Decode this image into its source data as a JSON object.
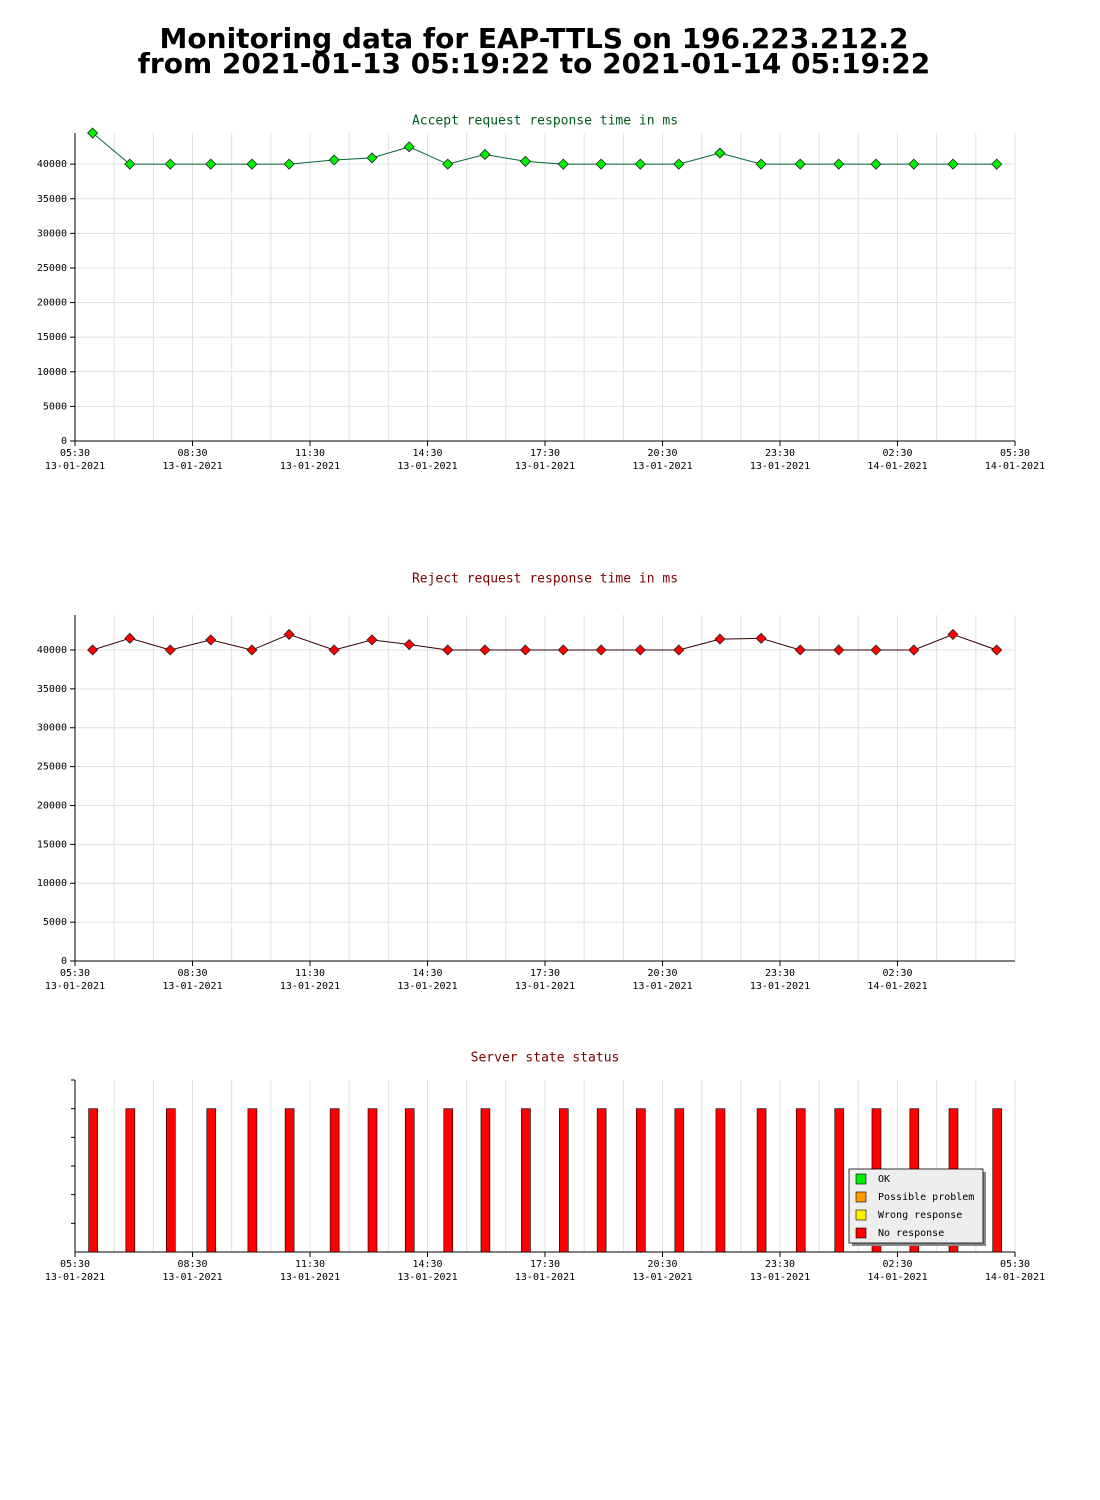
{
  "header": {
    "line1": "Monitoring data for EAP-TTLS on 196.223.212.2",
    "line2": "from 2021-01-13 05:19:22 to 2021-01-14 05:19:22"
  },
  "chart_data": [
    {
      "type": "line",
      "title": "Accept request response time in ms",
      "title_color": "#005a1e",
      "x": [
        "2021-01-13 05:57",
        "2021-01-13 06:54",
        "2021-01-13 07:56",
        "2021-01-13 08:58",
        "2021-01-13 10:01",
        "2021-01-13 10:58",
        "2021-01-13 12:07",
        "2021-01-13 13:05",
        "2021-01-13 14:02",
        "2021-01-13 15:01",
        "2021-01-13 15:58",
        "2021-01-13 17:00",
        "2021-01-13 17:58",
        "2021-01-13 18:56",
        "2021-01-13 19:56",
        "2021-01-13 20:55",
        "2021-01-13 21:58",
        "2021-01-13 23:01",
        "2021-01-14 00:01",
        "2021-01-14 01:00",
        "2021-01-14 01:57",
        "2021-01-14 02:55",
        "2021-01-14 03:55",
        "2021-01-14 05:02"
      ],
      "series": [
        {
          "color": "#00ee00",
          "line_color": "#006633",
          "values": [
            44500,
            40000,
            40000,
            40000,
            40000,
            40000,
            40600,
            40900,
            42500,
            40000,
            41400,
            40400,
            40000,
            40000,
            40000,
            40000,
            41600,
            40000,
            40000,
            40000,
            40000,
            40000,
            40000,
            40000
          ]
        }
      ],
      "xlim": [
        "2021-01-13 05:30",
        "2021-01-14 05:30"
      ],
      "xticks": [
        {
          "value": "2021-01-13 05:30",
          "label": "05:30",
          "date": "13-01-2021"
        },
        {
          "value": "2021-01-13 08:30",
          "label": "08:30",
          "date": "13-01-2021"
        },
        {
          "value": "2021-01-13 11:30",
          "label": "11:30",
          "date": "13-01-2021"
        },
        {
          "value": "2021-01-13 14:30",
          "label": "14:30",
          "date": "13-01-2021"
        },
        {
          "value": "2021-01-13 17:30",
          "label": "17:30",
          "date": "13-01-2021"
        },
        {
          "value": "2021-01-13 20:30",
          "label": "20:30",
          "date": "13-01-2021"
        },
        {
          "value": "2021-01-13 23:30",
          "label": "23:30",
          "date": "13-01-2021"
        },
        {
          "value": "2021-01-14 02:30",
          "label": "02:30",
          "date": "14-01-2021"
        },
        {
          "value": "2021-01-14 05:30",
          "label": "05:30",
          "date": "14-01-2021"
        }
      ],
      "ylim": [
        0,
        44500
      ],
      "yticks": [
        0,
        5000,
        10000,
        15000,
        20000,
        25000,
        30000,
        35000,
        40000
      ],
      "grid": true
    },
    {
      "type": "line",
      "title": "Reject request response time in ms",
      "title_color": "#7a0000",
      "x": [
        "2021-01-13 05:57",
        "2021-01-13 06:54",
        "2021-01-13 07:56",
        "2021-01-13 08:58",
        "2021-01-13 10:01",
        "2021-01-13 10:58",
        "2021-01-13 12:07",
        "2021-01-13 13:05",
        "2021-01-13 14:02",
        "2021-01-13 15:01",
        "2021-01-13 15:58",
        "2021-01-13 17:00",
        "2021-01-13 17:58",
        "2021-01-13 18:56",
        "2021-01-13 19:56",
        "2021-01-13 20:55",
        "2021-01-13 21:58",
        "2021-01-13 23:01",
        "2021-01-14 00:01",
        "2021-01-14 01:00",
        "2021-01-14 01:57",
        "2021-01-14 02:55",
        "2021-01-14 03:55",
        "2021-01-14 05:02"
      ],
      "series": [
        {
          "color": "#ff0000",
          "line_color": "#330000",
          "values": [
            40000,
            41500,
            40000,
            41300,
            40000,
            42000,
            40000,
            41300,
            40700,
            40000,
            40000,
            40000,
            40000,
            40000,
            40000,
            40000,
            41400,
            41500,
            40000,
            40000,
            40000,
            40000,
            42000,
            40000
          ]
        }
      ],
      "xlim": [
        "2021-01-13 05:30",
        "2021-01-14 05:30"
      ],
      "xticks": [
        {
          "value": "2021-01-13 05:30",
          "label": "05:30",
          "date": "13-01-2021"
        },
        {
          "value": "2021-01-13 08:30",
          "label": "08:30",
          "date": "13-01-2021"
        },
        {
          "value": "2021-01-13 11:30",
          "label": "11:30",
          "date": "13-01-2021"
        },
        {
          "value": "2021-01-13 14:30",
          "label": "14:30",
          "date": "13-01-2021"
        },
        {
          "value": "2021-01-13 17:30",
          "label": "17:30",
          "date": "13-01-2021"
        },
        {
          "value": "2021-01-13 20:30",
          "label": "20:30",
          "date": "13-01-2021"
        },
        {
          "value": "2021-01-13 23:30",
          "label": "23:30",
          "date": "13-01-2021"
        },
        {
          "value": "2021-01-14 02:30",
          "label": "02:30",
          "date": "14-01-2021"
        }
      ],
      "ylim": [
        0,
        44500
      ],
      "yticks": [
        0,
        5000,
        10000,
        15000,
        20000,
        25000,
        30000,
        35000,
        40000
      ],
      "grid": true
    },
    {
      "type": "status",
      "title": "Server state status",
      "title_color": "#7a0000",
      "x": [
        "2021-01-13 05:57",
        "2021-01-13 06:54",
        "2021-01-13 07:56",
        "2021-01-13 08:58",
        "2021-01-13 10:01",
        "2021-01-13 10:58",
        "2021-01-13 12:07",
        "2021-01-13 13:05",
        "2021-01-13 14:02",
        "2021-01-13 15:01",
        "2021-01-13 15:58",
        "2021-01-13 17:00",
        "2021-01-13 17:58",
        "2021-01-13 18:56",
        "2021-01-13 19:56",
        "2021-01-13 20:55",
        "2021-01-13 21:58",
        "2021-01-13 23:01",
        "2021-01-14 00:01",
        "2021-01-14 01:00",
        "2021-01-14 01:57",
        "2021-01-14 02:55",
        "2021-01-14 03:55",
        "2021-01-14 05:02"
      ],
      "states": [
        "No response",
        "No response",
        "No response",
        "No response",
        "No response",
        "No response",
        "No response",
        "No response",
        "No response",
        "No response",
        "No response",
        "No response",
        "No response",
        "No response",
        "No response",
        "No response",
        "No response",
        "No response",
        "No response",
        "No response",
        "No response",
        "No response",
        "No response",
        "No response"
      ],
      "legend": [
        {
          "name": "OK",
          "color": "#00ee00"
        },
        {
          "name": "Possible problem",
          "color": "#ff9900"
        },
        {
          "name": "Wrong response",
          "color": "#ffee00"
        },
        {
          "name": "No response",
          "color": "#ff0000"
        }
      ],
      "xlim": [
        "2021-01-13 05:30",
        "2021-01-14 05:30"
      ],
      "xticks": [
        {
          "value": "2021-01-13 05:30",
          "label": "05:30",
          "date": "13-01-2021"
        },
        {
          "value": "2021-01-13 08:30",
          "label": "08:30",
          "date": "13-01-2021"
        },
        {
          "value": "2021-01-13 11:30",
          "label": "11:30",
          "date": "13-01-2021"
        },
        {
          "value": "2021-01-13 14:30",
          "label": "14:30",
          "date": "13-01-2021"
        },
        {
          "value": "2021-01-13 17:30",
          "label": "17:30",
          "date": "13-01-2021"
        },
        {
          "value": "2021-01-13 20:30",
          "label": "20:30",
          "date": "13-01-2021"
        },
        {
          "value": "2021-01-13 23:30",
          "label": "23:30",
          "date": "13-01-2021"
        },
        {
          "value": "2021-01-14 02:30",
          "label": "02:30",
          "date": "14-01-2021"
        },
        {
          "value": "2021-01-14 05:30",
          "label": "05:30",
          "date": "14-01-2021"
        }
      ],
      "grid": true
    }
  ]
}
